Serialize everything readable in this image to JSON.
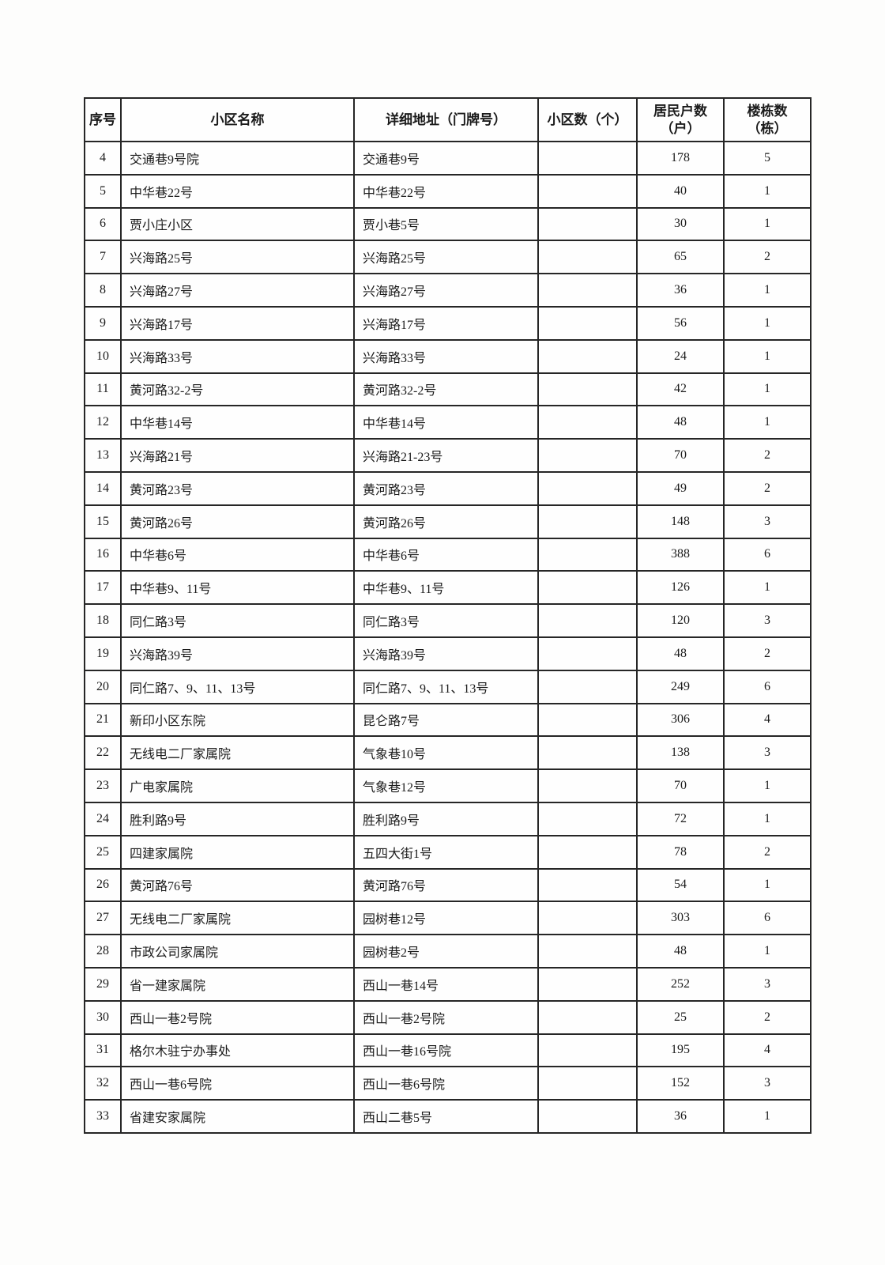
{
  "document": {
    "kind": "scanned-table-page",
    "colors": {
      "paper": "#fdfdfc",
      "cell_background": "#fefefe",
      "border": "#262626",
      "text": "#1b1b1b"
    }
  },
  "table": {
    "headers": [
      {
        "label": "序号"
      },
      {
        "label": "小区名称"
      },
      {
        "label": "详细地址（门牌号）"
      },
      {
        "label": "小区数（个）"
      },
      {
        "label": "居民户数\n（户）"
      },
      {
        "label": "楼栋数\n（栋）"
      }
    ],
    "rows": [
      [
        "4",
        "交通巷9号院",
        "交通巷9号",
        "",
        "178",
        "5"
      ],
      [
        "5",
        "中华巷22号",
        "中华巷22号",
        "",
        "40",
        "1"
      ],
      [
        "6",
        "贾小庄小区",
        "贾小巷5号",
        "",
        "30",
        "1"
      ],
      [
        "7",
        "兴海路25号",
        "兴海路25号",
        "",
        "65",
        "2"
      ],
      [
        "8",
        "兴海路27号",
        "兴海路27号",
        "",
        "36",
        "1"
      ],
      [
        "9",
        "兴海路17号",
        "兴海路17号",
        "",
        "56",
        "1"
      ],
      [
        "10",
        "兴海路33号",
        "兴海路33号",
        "",
        "24",
        "1"
      ],
      [
        "11",
        "黄河路32-2号",
        "黄河路32-2号",
        "",
        "42",
        "1"
      ],
      [
        "12",
        "中华巷14号",
        "中华巷14号",
        "",
        "48",
        "1"
      ],
      [
        "13",
        "兴海路21号",
        "兴海路21-23号",
        "",
        "70",
        "2"
      ],
      [
        "14",
        "黄河路23号",
        "黄河路23号",
        "",
        "49",
        "2"
      ],
      [
        "15",
        "黄河路26号",
        "黄河路26号",
        "",
        "148",
        "3"
      ],
      [
        "16",
        "中华巷6号",
        "中华巷6号",
        "",
        "388",
        "6"
      ],
      [
        "17",
        "中华巷9、11号",
        "中华巷9、11号",
        "",
        "126",
        "1"
      ],
      [
        "18",
        "同仁路3号",
        "同仁路3号",
        "",
        "120",
        "3"
      ],
      [
        "19",
        "兴海路39号",
        "兴海路39号",
        "",
        "48",
        "2"
      ],
      [
        "20",
        "同仁路7、9、11、13号",
        "同仁路7、9、11、13号",
        "",
        "249",
        "6"
      ],
      [
        "21",
        "新印小区东院",
        "昆仑路7号",
        "",
        "306",
        "4"
      ],
      [
        "22",
        "无线电二厂家属院",
        "气象巷10号",
        "",
        "138",
        "3"
      ],
      [
        "23",
        "广电家属院",
        "气象巷12号",
        "",
        "70",
        "1"
      ],
      [
        "24",
        "胜利路9号",
        "胜利路9号",
        "",
        "72",
        "1"
      ],
      [
        "25",
        "四建家属院",
        "五四大街1号",
        "",
        "78",
        "2"
      ],
      [
        "26",
        "黄河路76号",
        "黄河路76号",
        "",
        "54",
        "1"
      ],
      [
        "27",
        "无线电二厂家属院",
        "园树巷12号",
        "",
        "303",
        "6"
      ],
      [
        "28",
        "市政公司家属院",
        "园树巷2号",
        "",
        "48",
        "1"
      ],
      [
        "29",
        "省一建家属院",
        "西山一巷14号",
        "",
        "252",
        "3"
      ],
      [
        "30",
        "西山一巷2号院",
        "西山一巷2号院",
        "",
        "25",
        "2"
      ],
      [
        "31",
        "格尔木驻宁办事处",
        "西山一巷16号院",
        "",
        "195",
        "4"
      ],
      [
        "32",
        "西山一巷6号院",
        "西山一巷6号院",
        "",
        "152",
        "3"
      ],
      [
        "33",
        "省建安家属院",
        "西山二巷5号",
        "",
        "36",
        "1"
      ]
    ]
  }
}
